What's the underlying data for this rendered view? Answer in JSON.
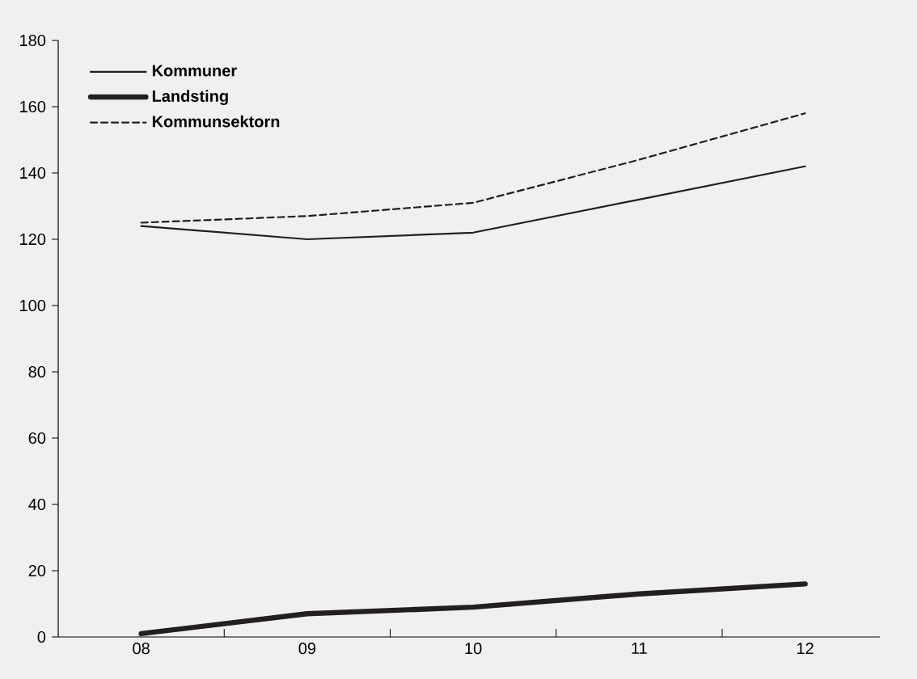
{
  "chart_data": {
    "type": "line",
    "categories": [
      "08",
      "09",
      "10",
      "11",
      "12"
    ],
    "series": [
      {
        "name": "Kommuner",
        "color": "#231f20",
        "line_style": "solid",
        "values": [
          124,
          120,
          122,
          132,
          142
        ]
      },
      {
        "name": "Landsting",
        "color": "#231f20",
        "line_style": "solid",
        "values": [
          1,
          7,
          9,
          13,
          16
        ]
      },
      {
        "name": "Kommunsektorn",
        "color": "#231f20",
        "line_style": "dashed",
        "values": [
          125,
          127,
          131,
          144,
          158
        ]
      }
    ],
    "ylim": [
      0,
      180
    ],
    "yticks": [
      0,
      20,
      40,
      60,
      80,
      100,
      120,
      140,
      160,
      180
    ],
    "grid": false,
    "legend": "top left",
    "marker": "none"
  }
}
